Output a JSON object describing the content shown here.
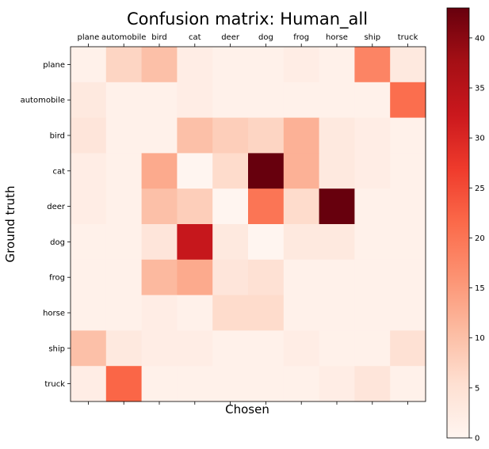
{
  "chart_data": {
    "type": "heatmap",
    "title": "Confusion matrix: Human_all",
    "xlabel": "Chosen",
    "ylabel": "Ground truth",
    "x_categories": [
      "plane",
      "automobile",
      "bird",
      "cat",
      "deer",
      "dog",
      "frog",
      "horse",
      "ship",
      "truck"
    ],
    "y_categories": [
      "plane",
      "automobile",
      "bird",
      "cat",
      "deer",
      "dog",
      "frog",
      "horse",
      "ship",
      "truck"
    ],
    "values": [
      [
        1,
        7,
        10,
        2,
        1,
        1,
        2,
        1,
        18,
        3
      ],
      [
        3,
        1,
        1,
        2,
        1,
        1,
        1,
        1,
        1,
        21
      ],
      [
        4,
        1,
        1,
        10,
        8,
        7,
        12,
        3,
        2,
        1
      ],
      [
        2,
        1,
        13,
        0,
        6,
        43,
        12,
        3,
        2,
        1
      ],
      [
        2,
        1,
        10,
        8,
        0,
        20,
        6,
        43,
        1,
        1
      ],
      [
        1,
        1,
        4,
        33,
        3,
        0,
        3,
        3,
        1,
        1
      ],
      [
        1,
        1,
        11,
        13,
        4,
        5,
        1,
        1,
        1,
        1
      ],
      [
        1,
        1,
        2,
        1,
        6,
        6,
        1,
        1,
        1,
        1
      ],
      [
        10,
        3,
        2,
        2,
        1,
        1,
        2,
        1,
        1,
        5
      ],
      [
        2,
        22,
        1,
        1,
        1,
        1,
        1,
        2,
        4,
        1
      ]
    ],
    "colormap": "Reds",
    "vmin": 0,
    "vmax": 43,
    "colorbar_ticks": [
      0,
      5,
      10,
      15,
      20,
      25,
      30,
      35,
      40
    ],
    "x_tick_position": "top",
    "grid": false
  }
}
